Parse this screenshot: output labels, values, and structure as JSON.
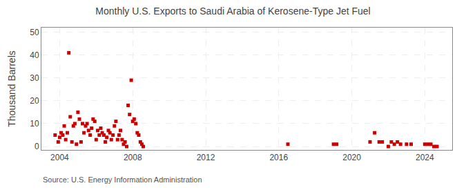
{
  "chart_data": {
    "type": "scatter",
    "title": "Monthly U.S. Exports to Saudi Arabia of Kerosene-Type Jet Fuel",
    "ylabel": "Thousand Barrels",
    "annotations": [
      "Source: U.S. Energy Information Administration"
    ],
    "x": [
      2003.75,
      2003.92,
      2004.0,
      2004.08,
      2004.17,
      2004.25,
      2004.33,
      2004.42,
      2004.5,
      2004.58,
      2004.67,
      2004.75,
      2004.83,
      2004.92,
      2005.0,
      2005.08,
      2005.17,
      2005.25,
      2005.33,
      2005.42,
      2005.5,
      2005.58,
      2005.67,
      2005.75,
      2005.83,
      2005.92,
      2006.0,
      2006.08,
      2006.17,
      2006.25,
      2006.33,
      2006.42,
      2006.5,
      2006.58,
      2006.67,
      2006.75,
      2006.83,
      2006.92,
      2007.0,
      2007.08,
      2007.17,
      2007.25,
      2007.33,
      2007.42,
      2007.5,
      2007.58,
      2007.67,
      2007.75,
      2007.83,
      2007.92,
      2008.0,
      2008.08,
      2008.17,
      2008.25,
      2008.33,
      2008.42,
      2008.5,
      2008.58,
      2016.5,
      2019.0,
      2019.17,
      2021.0,
      2021.25,
      2021.5,
      2021.67,
      2022.0,
      2022.17,
      2022.33,
      2022.5,
      2022.67,
      2023.0,
      2023.25,
      2024.0,
      2024.17,
      2024.33,
      2024.5,
      2024.67
    ],
    "values": [
      5,
      2,
      4,
      6,
      5,
      9,
      3,
      6,
      41,
      13,
      2,
      9,
      10,
      1,
      15,
      12,
      2,
      10,
      6,
      9,
      10,
      7,
      5,
      8,
      12,
      11,
      3,
      7,
      5,
      8,
      6,
      5,
      2,
      4,
      7,
      6,
      3,
      5,
      9,
      11,
      3,
      5,
      7,
      3,
      1,
      2,
      0,
      18,
      14,
      29,
      11,
      12,
      10,
      6,
      5,
      2,
      1,
      0,
      1,
      1,
      1,
      2,
      6,
      2,
      2,
      0,
      2,
      1,
      2,
      1,
      1,
      1,
      1,
      1,
      1,
      0,
      0
    ],
    "color": "#cc0000",
    "marker": "square",
    "xlim": [
      2003.0,
      2025.5
    ],
    "ylim": [
      -1.5,
      52
    ],
    "xticks": [
      2004,
      2008,
      2012,
      2016,
      2020,
      2024
    ],
    "yticks": [
      0,
      10,
      20,
      30,
      40,
      50
    ],
    "grid": true
  }
}
